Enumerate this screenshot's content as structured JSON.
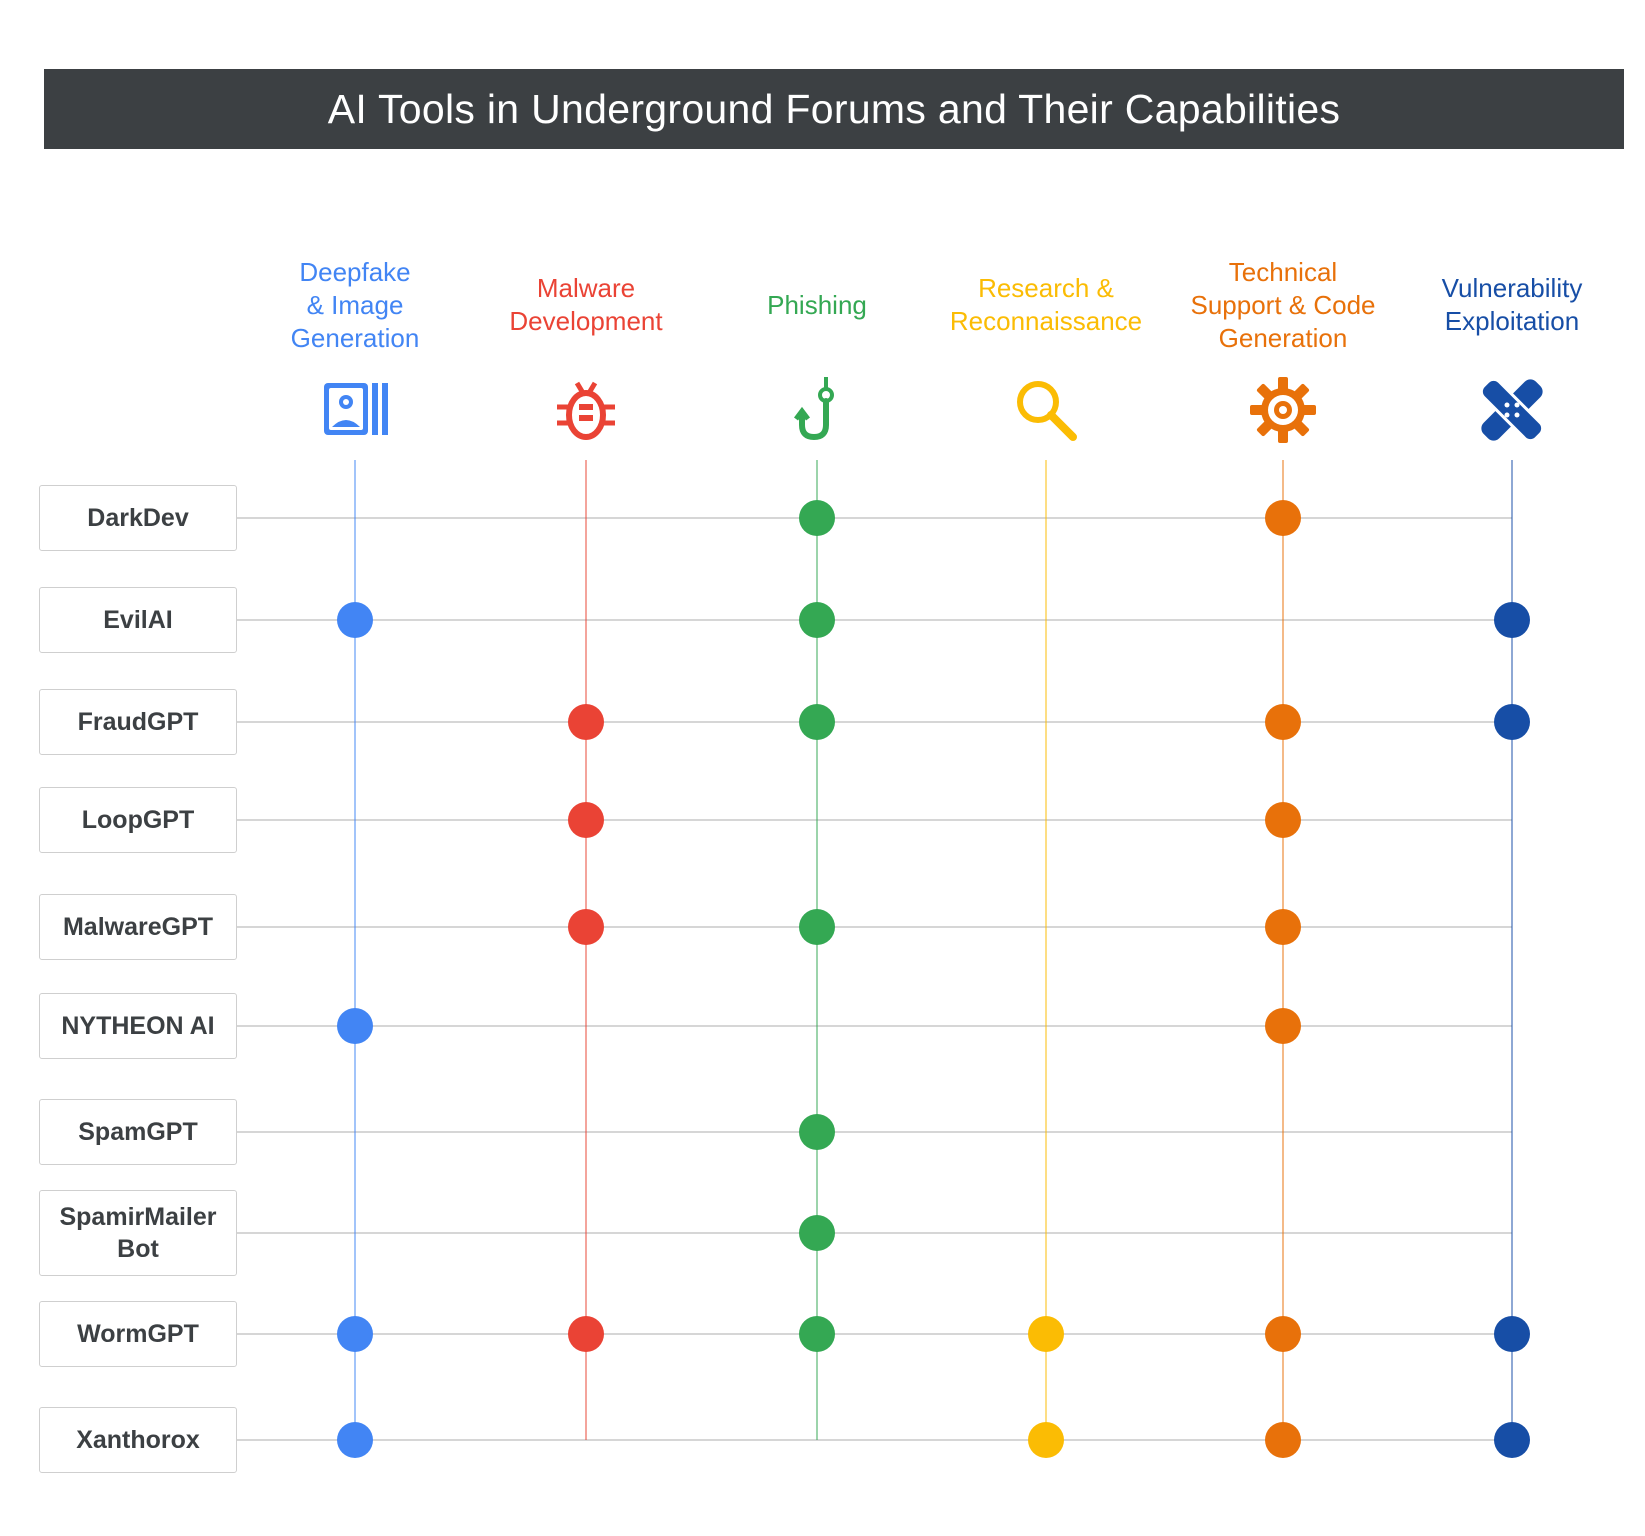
{
  "title": "AI Tools in Underground Forums and Their Capabilities",
  "categories": [
    {
      "id": "deepfake",
      "label": "Deepfake\n& Image\nGeneration",
      "color": "#4285f4",
      "icon": "image-gallery-icon"
    },
    {
      "id": "malware",
      "label": "Malware\nDevelopment",
      "color": "#ea4335",
      "icon": "bug-icon"
    },
    {
      "id": "phishing",
      "label": "Phishing",
      "color": "#34a853",
      "icon": "fishing-hook-icon"
    },
    {
      "id": "research",
      "label": "Research &\nReconnaissance",
      "color": "#fbbc04",
      "icon": "magnifier-icon"
    },
    {
      "id": "techsupport",
      "label": "Technical\nSupport & Code\nGeneration",
      "color": "#e8710a",
      "icon": "gear-icon"
    },
    {
      "id": "vuln",
      "label": "Vulnerability\nExploitation",
      "color": "#174ea6",
      "icon": "bandage-icon"
    }
  ],
  "tools": [
    {
      "name": "DarkDev",
      "capabilities": [
        "phishing",
        "techsupport"
      ]
    },
    {
      "name": "EvilAI",
      "capabilities": [
        "deepfake",
        "phishing",
        "vuln"
      ]
    },
    {
      "name": "FraudGPT",
      "capabilities": [
        "malware",
        "phishing",
        "techsupport",
        "vuln"
      ]
    },
    {
      "name": "LoopGPT",
      "capabilities": [
        "malware",
        "techsupport"
      ]
    },
    {
      "name": "MalwareGPT",
      "capabilities": [
        "malware",
        "phishing",
        "techsupport"
      ]
    },
    {
      "name": "NYTHEON AI",
      "capabilities": [
        "deepfake",
        "techsupport"
      ]
    },
    {
      "name": "SpamGPT",
      "capabilities": [
        "phishing"
      ]
    },
    {
      "name": "SpamirMailer\nBot",
      "capabilities": [
        "phishing"
      ]
    },
    {
      "name": "WormGPT",
      "capabilities": [
        "deepfake",
        "malware",
        "phishing",
        "research",
        "techsupport",
        "vuln"
      ]
    },
    {
      "name": "Xanthorox",
      "capabilities": [
        "deepfake",
        "research",
        "techsupport",
        "vuln"
      ]
    }
  ],
  "colors": {
    "title_bg": "#3c4043",
    "row_line": "#d6d6d6",
    "box_border": "#cfcfcf"
  }
}
